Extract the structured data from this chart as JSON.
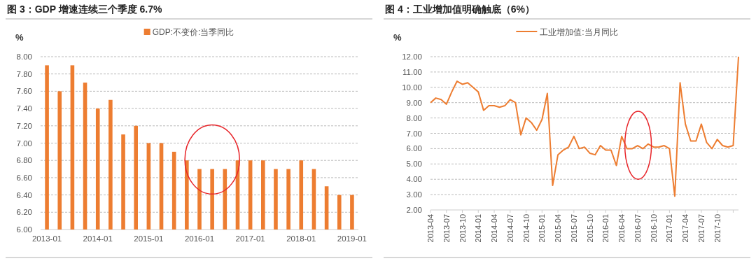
{
  "chart_data": [
    {
      "type": "bar",
      "title": "图 3：GDP 增速连续三个季度 6.7%",
      "ylabel": "%",
      "legend": "top",
      "grid": "y",
      "categories": [
        "2013-01",
        null,
        null,
        null,
        "2014-01",
        null,
        null,
        null,
        "2015-01",
        null,
        null,
        null,
        "2016-01",
        null,
        null,
        null,
        "2017-01",
        null,
        null,
        null,
        "2018-01",
        null,
        null,
        null,
        "2019-01"
      ],
      "series": [
        {
          "name": "GDP:不变价:当季同比",
          "color": "#ed7d31",
          "values": [
            7.9,
            7.6,
            7.9,
            7.7,
            7.4,
            7.5,
            7.1,
            7.2,
            7.0,
            7.0,
            6.9,
            6.8,
            6.7,
            6.7,
            6.7,
            6.8,
            6.8,
            6.8,
            6.7,
            6.7,
            6.8,
            6.7,
            6.5,
            6.4,
            6.4
          ]
        }
      ],
      "ylim": [
        6,
        8
      ],
      "yticks": [
        {
          "value": 6,
          "label": "6.00"
        },
        {
          "value": 6.2,
          "label": "6.20"
        },
        {
          "value": 6.4,
          "label": "6.40"
        },
        {
          "value": 6.6,
          "label": "6.60"
        },
        {
          "value": 6.8,
          "label": "6.80"
        },
        {
          "value": 7,
          "label": "7.00"
        },
        {
          "value": 7.2,
          "label": "7.20"
        },
        {
          "value": 7.4,
          "label": "7.40"
        },
        {
          "value": 7.6,
          "label": "7.60"
        },
        {
          "value": 7.8,
          "label": "7.80"
        },
        {
          "value": 8,
          "label": "8.00"
        }
      ]
    },
    {
      "type": "line",
      "title": "图 4：工业增加值明确触底（6%）",
      "ylabel": "%",
      "legend": "top",
      "grid": "y",
      "marker": "none",
      "line_style": "solid",
      "categories": [
        "2013-04",
        null,
        null,
        "2013-07",
        null,
        null,
        "2013-10",
        null,
        null,
        "2014-01",
        null,
        null,
        "2014-04",
        null,
        null,
        "2014-07",
        null,
        null,
        "2014-10",
        null,
        null,
        "2015-01",
        null,
        null,
        "2015-04",
        null,
        null,
        "2015-07",
        null,
        null,
        "2015-10",
        null,
        null,
        "2016-01",
        null,
        null,
        "2016-04",
        null,
        null,
        "2016-07",
        null,
        null,
        "2016-10",
        null,
        null,
        "2017-01",
        null,
        null,
        "2017-04",
        null,
        null,
        "2017-07",
        null,
        null,
        "2017-10",
        null,
        null,
        null,
        null
      ],
      "series": [
        {
          "name": "工业增加值:当月同比",
          "color": "#ed7d31",
          "values": [
            9.0,
            9.3,
            9.2,
            8.9,
            9.7,
            10.4,
            10.2,
            10.3,
            10.0,
            9.7,
            8.5,
            8.8,
            8.8,
            8.7,
            8.8,
            9.2,
            9.0,
            6.9,
            8.0,
            7.7,
            7.2,
            7.9,
            9.6,
            3.6,
            5.6,
            5.9,
            6.1,
            6.8,
            6.0,
            6.1,
            5.7,
            5.6,
            6.2,
            5.9,
            5.9,
            4.9,
            6.8,
            6.0,
            6.0,
            6.2,
            6.0,
            6.3,
            6.1,
            6.1,
            6.2,
            6.0,
            2.9,
            10.3,
            7.6,
            6.5,
            6.5,
            7.6,
            6.4,
            6.0,
            6.6,
            6.2,
            6.1,
            6.2,
            12.0
          ]
        }
      ],
      "ylim": [
        2,
        12
      ],
      "yticks": [
        {
          "value": 2,
          "label": "2.00"
        },
        {
          "value": 3,
          "label": "3.00"
        },
        {
          "value": 4,
          "label": "4.00"
        },
        {
          "value": 5,
          "label": "5.00"
        },
        {
          "value": 6,
          "label": "6.00"
        },
        {
          "value": 7,
          "label": "7.00"
        },
        {
          "value": 8,
          "label": "8.00"
        },
        {
          "value": 9,
          "label": "9.00"
        },
        {
          "value": 10,
          "label": "10.00"
        },
        {
          "value": 11,
          "label": "11.00"
        },
        {
          "value": 12,
          "label": "12.00"
        }
      ]
    }
  ]
}
